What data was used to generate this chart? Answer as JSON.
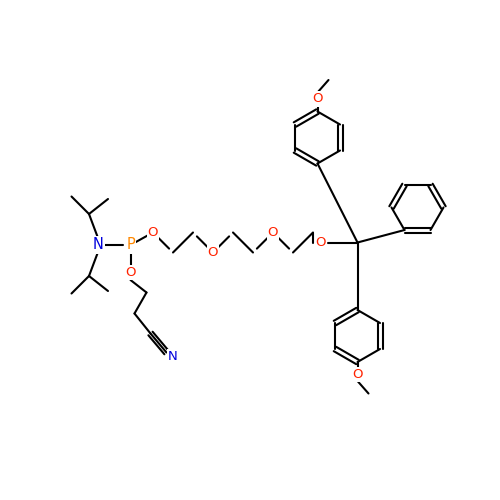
{
  "bg": "#ffffff",
  "bc": "#000000",
  "Oc": "#ff2200",
  "Nc": "#0000dd",
  "Pc": "#ff8800",
  "lw": 1.5,
  "fs": 9.5,
  "R": 0.52,
  "xlim": [
    0,
    10
  ],
  "ylim": [
    0,
    10
  ]
}
